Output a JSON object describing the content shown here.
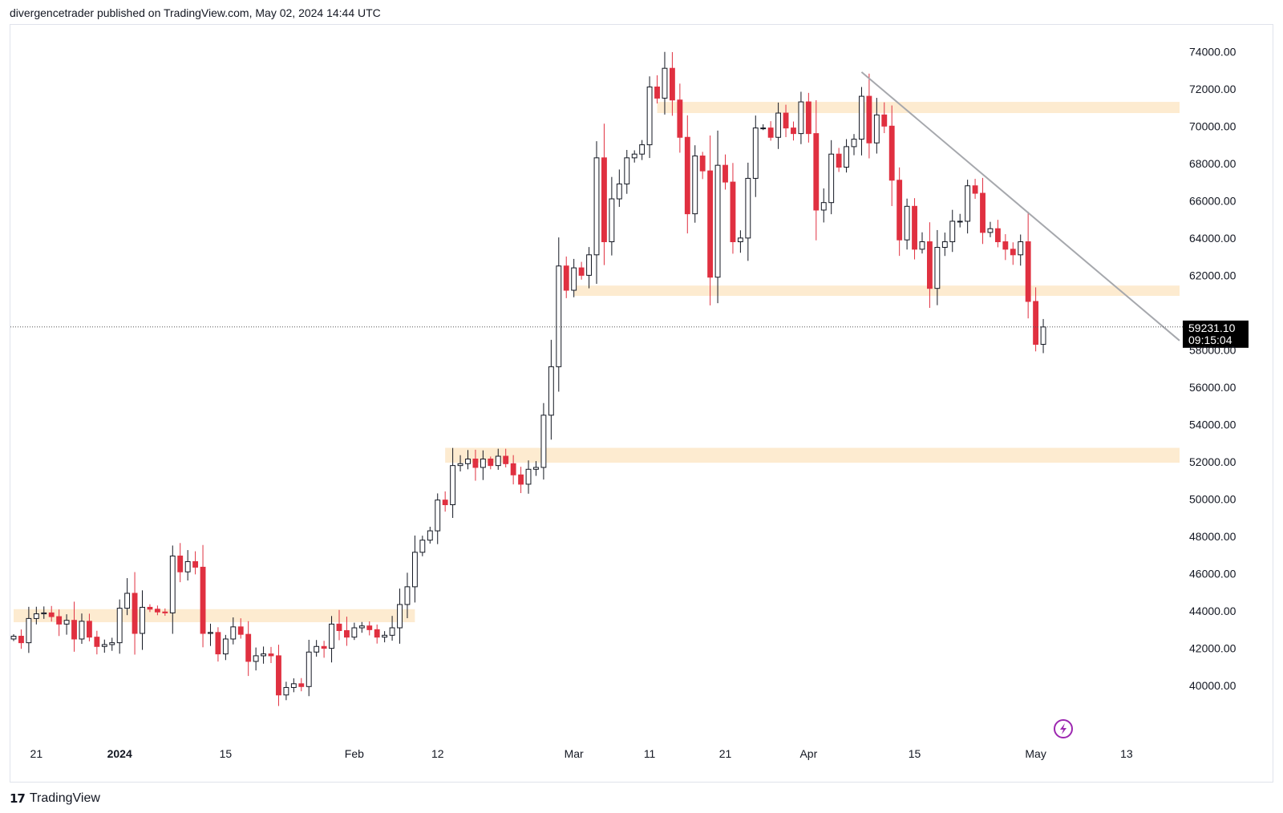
{
  "header": {
    "publisher_line": "divergencetrader published on TradingView.com, May 02, 2024 14:44 UTC"
  },
  "footer": {
    "brand": "TradingView",
    "logo_glyph": "17"
  },
  "colors": {
    "up": "#131722",
    "down": "#e03040",
    "zone": "#fdebd0",
    "trendline": "#a6a8ad",
    "badge_bg": "#000000"
  },
  "chart_data": {
    "type": "candlestick",
    "title": "",
    "ylim": [
      38200,
      75000
    ],
    "y_ticks": [
      "74000.00",
      "72000.00",
      "70000.00",
      "68000.00",
      "66000.00",
      "64000.00",
      "62000.00",
      "60000.00",
      "58000.00",
      "56000.00",
      "54000.00",
      "52000.00",
      "50000.00",
      "48000.00",
      "46000.00",
      "44000.00",
      "42000.00",
      "40000.00"
    ],
    "x_ticks": [
      {
        "label": "21",
        "date": "2023-12-21",
        "bold": false
      },
      {
        "label": "2024",
        "date": "2024-01-01",
        "bold": true
      },
      {
        "label": "15",
        "date": "2024-01-15",
        "bold": false
      },
      {
        "label": "Feb",
        "date": "2024-02-01",
        "bold": false
      },
      {
        "label": "12",
        "date": "2024-02-12",
        "bold": false
      },
      {
        "label": "Mar",
        "date": "2024-03-01",
        "bold": false
      },
      {
        "label": "11",
        "date": "2024-03-11",
        "bold": false
      },
      {
        "label": "21",
        "date": "2024-03-21",
        "bold": false
      },
      {
        "label": "Apr",
        "date": "2024-04-01",
        "bold": false
      },
      {
        "label": "15",
        "date": "2024-04-15",
        "bold": false
      },
      {
        "label": "May",
        "date": "2024-05-01",
        "bold": false
      },
      {
        "label": "13",
        "date": "2024-05-13",
        "bold": false
      }
    ],
    "x_start": "2023-12-18",
    "x_end": "2024-05-20",
    "closes": [
      [
        "2023-12-18",
        42650
      ],
      [
        "2023-12-19",
        42300
      ],
      [
        "2023-12-20",
        43600
      ],
      [
        "2023-12-21",
        43850
      ],
      [
        "2023-12-22",
        43900
      ],
      [
        "2023-12-23",
        43700
      ],
      [
        "2023-12-24",
        43300
      ],
      [
        "2023-12-25",
        43500
      ],
      [
        "2023-12-26",
        42500
      ],
      [
        "2023-12-27",
        43450
      ],
      [
        "2023-12-28",
        42600
      ],
      [
        "2023-12-29",
        42100
      ],
      [
        "2023-12-30",
        42200
      ],
      [
        "2023-12-31",
        42300
      ],
      [
        "2024-01-01",
        44150
      ],
      [
        "2024-01-02",
        44950
      ],
      [
        "2024-01-03",
        42800
      ],
      [
        "2024-01-04",
        44200
      ],
      [
        "2024-01-05",
        44100
      ],
      [
        "2024-01-06",
        43950
      ],
      [
        "2024-01-07",
        43900
      ],
      [
        "2024-01-08",
        46950
      ],
      [
        "2024-01-09",
        46100
      ],
      [
        "2024-01-10",
        46650
      ],
      [
        "2024-01-11",
        46350
      ],
      [
        "2024-01-12",
        42800
      ],
      [
        "2024-01-13",
        42850
      ],
      [
        "2024-01-14",
        41700
      ],
      [
        "2024-01-15",
        42500
      ],
      [
        "2024-01-16",
        43150
      ],
      [
        "2024-01-17",
        42750
      ],
      [
        "2024-01-18",
        41300
      ],
      [
        "2024-01-19",
        41600
      ],
      [
        "2024-01-20",
        41700
      ],
      [
        "2024-01-21",
        41600
      ],
      [
        "2024-01-22",
        39500
      ],
      [
        "2024-01-23",
        39900
      ],
      [
        "2024-01-24",
        40100
      ],
      [
        "2024-01-25",
        39950
      ],
      [
        "2024-01-26",
        41800
      ],
      [
        "2024-01-27",
        42100
      ],
      [
        "2024-01-28",
        42000
      ],
      [
        "2024-01-29",
        43300
      ],
      [
        "2024-01-30",
        42950
      ],
      [
        "2024-01-31",
        42600
      ],
      [
        "2024-02-01",
        43100
      ],
      [
        "2024-02-02",
        43200
      ],
      [
        "2024-02-03",
        43000
      ],
      [
        "2024-02-04",
        42600
      ],
      [
        "2024-02-05",
        42700
      ],
      [
        "2024-02-06",
        43100
      ],
      [
        "2024-02-07",
        44350
      ],
      [
        "2024-02-08",
        45300
      ],
      [
        "2024-02-09",
        47150
      ],
      [
        "2024-02-10",
        47800
      ],
      [
        "2024-02-11",
        48300
      ],
      [
        "2024-02-12",
        49950
      ],
      [
        "2024-02-13",
        49700
      ],
      [
        "2024-02-14",
        51800
      ],
      [
        "2024-02-15",
        51900
      ],
      [
        "2024-02-16",
        52150
      ],
      [
        "2024-02-17",
        51700
      ],
      [
        "2024-02-18",
        52150
      ],
      [
        "2024-02-19",
        51800
      ],
      [
        "2024-02-20",
        52300
      ],
      [
        "2024-02-21",
        51900
      ],
      [
        "2024-02-22",
        51300
      ],
      [
        "2024-02-23",
        50800
      ],
      [
        "2024-02-24",
        51600
      ],
      [
        "2024-02-25",
        51700
      ],
      [
        "2024-02-26",
        54500
      ],
      [
        "2024-02-27",
        57100
      ],
      [
        "2024-02-28",
        62500
      ],
      [
        "2024-02-29",
        61200
      ],
      [
        "2024-03-01",
        62400
      ],
      [
        "2024-03-02",
        62000
      ],
      [
        "2024-03-03",
        63100
      ],
      [
        "2024-03-04",
        68300
      ],
      [
        "2024-03-05",
        63800
      ],
      [
        "2024-03-06",
        66100
      ],
      [
        "2024-03-07",
        66900
      ],
      [
        "2024-03-08",
        68300
      ],
      [
        "2024-03-09",
        68500
      ],
      [
        "2024-03-10",
        69000
      ],
      [
        "2024-03-11",
        72100
      ],
      [
        "2024-03-12",
        71500
      ],
      [
        "2024-03-13",
        73100
      ],
      [
        "2024-03-14",
        71400
      ],
      [
        "2024-03-15",
        69400
      ],
      [
        "2024-03-16",
        65300
      ],
      [
        "2024-03-17",
        68400
      ],
      [
        "2024-03-18",
        67600
      ],
      [
        "2024-03-19",
        61900
      ],
      [
        "2024-03-20",
        67900
      ],
      [
        "2024-03-21",
        67000
      ],
      [
        "2024-03-22",
        63800
      ],
      [
        "2024-03-23",
        64000
      ],
      [
        "2024-03-24",
        67200
      ],
      [
        "2024-03-25",
        69900
      ],
      [
        "2024-03-26",
        69900
      ],
      [
        "2024-03-27",
        69400
      ],
      [
        "2024-03-28",
        70700
      ],
      [
        "2024-03-29",
        69900
      ],
      [
        "2024-03-30",
        69600
      ],
      [
        "2024-03-31",
        71300
      ],
      [
        "2024-04-01",
        69600
      ],
      [
        "2024-04-02",
        65500
      ],
      [
        "2024-04-03",
        65900
      ],
      [
        "2024-04-04",
        68500
      ],
      [
        "2024-04-05",
        67800
      ],
      [
        "2024-04-06",
        68900
      ],
      [
        "2024-04-07",
        69300
      ],
      [
        "2024-04-08",
        71600
      ],
      [
        "2024-04-09",
        69100
      ],
      [
        "2024-04-10",
        70600
      ],
      [
        "2024-04-11",
        70000
      ],
      [
        "2024-04-12",
        67100
      ],
      [
        "2024-04-13",
        63900
      ],
      [
        "2024-04-14",
        65700
      ],
      [
        "2024-04-15",
        63400
      ],
      [
        "2024-04-16",
        63800
      ],
      [
        "2024-04-17",
        61300
      ],
      [
        "2024-04-18",
        63500
      ],
      [
        "2024-04-19",
        63800
      ],
      [
        "2024-04-20",
        64900
      ],
      [
        "2024-04-21",
        64900
      ],
      [
        "2024-04-22",
        66800
      ],
      [
        "2024-04-23",
        66400
      ],
      [
        "2024-04-24",
        64300
      ],
      [
        "2024-04-25",
        64500
      ],
      [
        "2024-04-26",
        63800
      ],
      [
        "2024-04-27",
        63400
      ],
      [
        "2024-04-28",
        63100
      ],
      [
        "2024-04-29",
        63800
      ],
      [
        "2024-04-30",
        60600
      ],
      [
        "2024-05-01",
        58300
      ],
      [
        "2024-05-02",
        59231
      ]
    ],
    "zones": [
      {
        "from": "2024-03-12",
        "to": "2024-05-20",
        "low": 70700,
        "high": 71300
      },
      {
        "from": "2024-03-01",
        "to": "2024-05-20",
        "low": 60900,
        "high": 61450
      },
      {
        "from": "2024-02-13",
        "to": "2024-05-20",
        "low": 51950,
        "high": 52750
      },
      {
        "from": "2023-12-18",
        "to": "2024-02-09",
        "low": 43400,
        "high": 44100
      }
    ],
    "trendline": {
      "from": [
        "2024-04-08",
        72900
      ],
      "to": [
        "2024-05-20",
        58500
      ]
    },
    "last_price": {
      "value": 59231.1,
      "label": "59231.10",
      "countdown": "09:15:04"
    }
  }
}
